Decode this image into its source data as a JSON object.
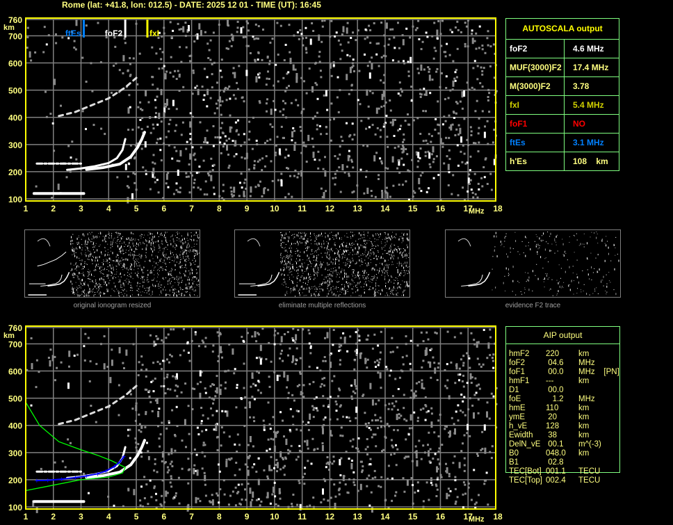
{
  "header": {
    "title": "Rome (lat: +41.8, lon: 012.5) - DATE: 2025 12 01 - TIME (UT): 16:45"
  },
  "axes": {
    "y_ticks": [
      "760",
      "700",
      "600",
      "500",
      "400",
      "300",
      "200",
      "100"
    ],
    "y_unit": "km",
    "x_ticks": [
      "1",
      "2",
      "3",
      "4",
      "5",
      "6",
      "7",
      "8",
      "9",
      "10",
      "11",
      "12",
      "13",
      "14",
      "15",
      "16",
      "17",
      "18"
    ],
    "x_unit": "MHz",
    "freq_range": [
      1,
      18
    ],
    "height_range": [
      100,
      760
    ]
  },
  "markers": [
    {
      "label": "ftEs",
      "freq": 3.1,
      "color": "#0080ff"
    },
    {
      "label": "foF2",
      "freq": 4.6,
      "color": "#ffffff"
    },
    {
      "label": "fxI",
      "freq": 5.4,
      "color": "#ffff00"
    }
  ],
  "traces": {
    "es_low": {
      "freq": [
        1.3,
        3.1
      ],
      "height": 120
    },
    "es_high": {
      "freq": [
        1.4,
        3.0
      ],
      "height": 230
    },
    "f2_o": {
      "freq": [
        2.5,
        3.0,
        3.5,
        4.0,
        4.3,
        4.5,
        4.6
      ],
      "height": [
        207,
        212,
        220,
        232,
        250,
        280,
        320
      ]
    },
    "f2_x": {
      "freq": [
        3.2,
        3.8,
        4.4,
        4.8,
        5.05,
        5.2,
        5.3
      ],
      "height": [
        208,
        215,
        228,
        255,
        290,
        320,
        345
      ]
    },
    "multiple": {
      "freq": [
        2.2,
        2.8,
        3.4,
        4.0,
        4.6,
        5.0
      ],
      "height": [
        405,
        420,
        445,
        470,
        510,
        545
      ]
    },
    "aip_profile": {
      "freq": [
        1.0,
        1.5,
        2.2,
        3.0,
        3.6,
        4.1,
        4.6,
        4.5,
        4.0,
        3.0,
        2.0,
        1.0
      ],
      "height": [
        485,
        400,
        340,
        310,
        290,
        270,
        245,
        225,
        210,
        200,
        180,
        160
      ]
    },
    "aip_points": {
      "freq": [
        1.4,
        1.8,
        2.3,
        2.8,
        3.2,
        3.6,
        3.9,
        4.2,
        4.4,
        4.55
      ],
      "height": [
        197,
        198,
        202,
        208,
        214,
        222,
        232,
        248,
        265,
        285
      ]
    }
  },
  "autoscala": {
    "title": "AUTOSCALA output",
    "rows": [
      {
        "key": "foF2",
        "value": "4.6 MHz",
        "color": "#ffffff"
      },
      {
        "key": "MUF(3000)F2",
        "value": "17.4 MHz",
        "color": "#ffff80"
      },
      {
        "key": "M(3000)F2",
        "value": "3.78",
        "color": "#ffff80"
      },
      {
        "key": "fxI",
        "value": "5.4 MHz",
        "color": "#d0d000"
      },
      {
        "key": "foF1",
        "value": "NO",
        "color": "#ff0000"
      },
      {
        "key": "ftEs",
        "value": "3.1 MHz",
        "color": "#0080ff"
      },
      {
        "key": "h'Es",
        "value": "108    km",
        "color": "#ffff80"
      }
    ]
  },
  "thumbnails": [
    {
      "caption": "original ionogram resized"
    },
    {
      "caption": "eliminate multiple reflections"
    },
    {
      "caption": "evidence F2 trace"
    }
  ],
  "aip": {
    "title": "AIP output",
    "rows": [
      [
        "hmF2",
        "220",
        "km"
      ],
      [
        "foF2",
        " 04.6",
        "MHz"
      ],
      [
        "foF1",
        " 00.0",
        "MHz    [PN]"
      ],
      [
        "hmF1",
        "---",
        "km"
      ],
      [
        "D1",
        " 00.0",
        ""
      ],
      [
        "foE",
        "   1.2",
        "MHz"
      ],
      [
        "hmE",
        "110",
        "km"
      ],
      [
        "ymE",
        " 20",
        "km"
      ],
      [
        "h_vE",
        "128",
        "km"
      ],
      [
        "Ewidth",
        " 38",
        "km"
      ],
      [
        "DelN_vE",
        " 00.1",
        "m^(-3)"
      ],
      [
        "B0",
        "048.0",
        "km"
      ],
      [
        "B1",
        " 02.8",
        ""
      ],
      [
        "TEC[Bot]",
        "001.1",
        "TECU"
      ],
      [
        "TEC[Top]",
        "002.4",
        "TECU"
      ]
    ]
  },
  "colors": {
    "axis": "#ffff00",
    "grid": "#808080",
    "table_border": "#80ff80",
    "profile": "#00ff00",
    "points": "#0000ff"
  }
}
